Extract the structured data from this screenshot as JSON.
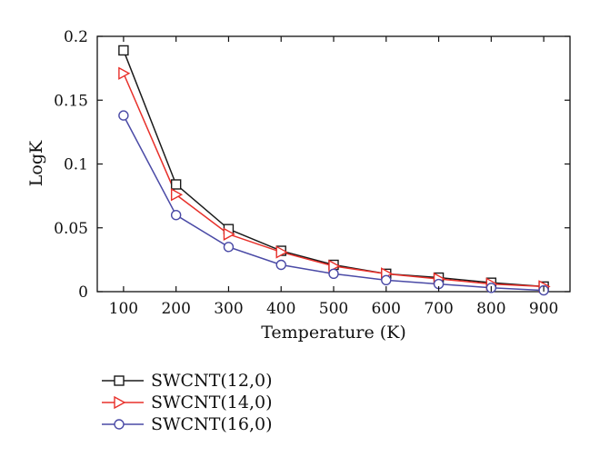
{
  "chart_data": {
    "type": "line",
    "title": "",
    "xlabel": "Temperature (K)",
    "ylabel": "LogK",
    "x": [
      100,
      200,
      300,
      400,
      500,
      600,
      700,
      800,
      900
    ],
    "xlim": [
      50,
      950
    ],
    "ylim": [
      0,
      0.2
    ],
    "xticks": [
      100,
      200,
      300,
      400,
      500,
      600,
      700,
      800,
      900
    ],
    "yticks": [
      0,
      0.05,
      0.1,
      0.15,
      0.2
    ],
    "xtick_labels": [
      "100",
      "200",
      "300",
      "400",
      "500",
      "600",
      "700",
      "800",
      "900"
    ],
    "ytick_labels": [
      "0",
      "0.05",
      "0.1",
      "0.15",
      "0.2"
    ],
    "grid": false,
    "legend_position": "bottom-left, below plot",
    "series": [
      {
        "name": "SWCNT(12,0)",
        "marker": "square",
        "color": "#1a1a1a",
        "values": [
          0.189,
          0.084,
          0.049,
          0.032,
          0.021,
          0.014,
          0.011,
          0.007,
          0.004
        ]
      },
      {
        "name": "SWCNT(14,0)",
        "marker": "triangle-right",
        "color": "#e8302a",
        "values": [
          0.171,
          0.076,
          0.045,
          0.031,
          0.02,
          0.014,
          0.01,
          0.006,
          0.004
        ]
      },
      {
        "name": "SWCNT(16,0)",
        "marker": "circle",
        "color": "#4a4aa6",
        "values": [
          0.138,
          0.06,
          0.035,
          0.021,
          0.014,
          0.009,
          0.006,
          0.003,
          0.001
        ]
      }
    ]
  }
}
